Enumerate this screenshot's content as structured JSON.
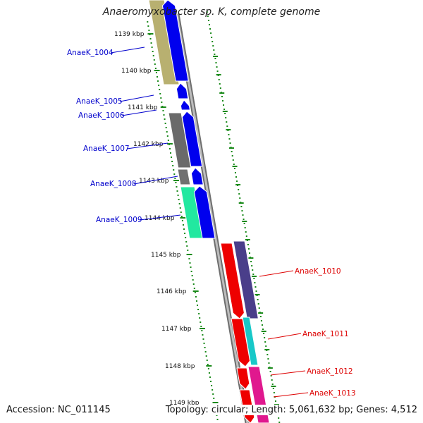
{
  "title": "Anaeromyxobacter sp. K, complete genome",
  "accession": "Accession: NC_011145",
  "summary": "Topology: circular; Length: 5,061,632 bp; Genes: 4,512",
  "colors": {
    "forward_label": "#0000cc",
    "reverse_label": "#dd0000",
    "tick": "#1a8a1a",
    "backbone": "#8c8c8c"
  },
  "scale_ticks": [
    "1139 kbp",
    "1140 kbp",
    "1141 kbp",
    "1142 kbp",
    "1143 kbp",
    "1144 kbp",
    "1145 kbp",
    "1146 kbp",
    "1147 kbp",
    "1148 kbp",
    "1149 kbp"
  ],
  "forward_genes": [
    {
      "label": "AnaeK_1004",
      "color": "#0000ee"
    },
    {
      "label": "AnaeK_1005",
      "color": "#0000ee"
    },
    {
      "label": "AnaeK_1006",
      "color": "#0000ee"
    },
    {
      "label": "AnaeK_1007",
      "color": "#0000ee"
    },
    {
      "label": "AnaeK_1008",
      "color": "#0000ee"
    },
    {
      "label": "AnaeK_1009",
      "color": "#0000ee"
    }
  ],
  "reverse_genes": [
    {
      "label": "AnaeK_1010",
      "color": "#ee0000"
    },
    {
      "label": "AnaeK_1011",
      "color": "#ee0000"
    },
    {
      "label": "AnaeK_1012",
      "color": "#ee0000"
    },
    {
      "label": "AnaeK_1013",
      "color": "#ee0000"
    }
  ]
}
